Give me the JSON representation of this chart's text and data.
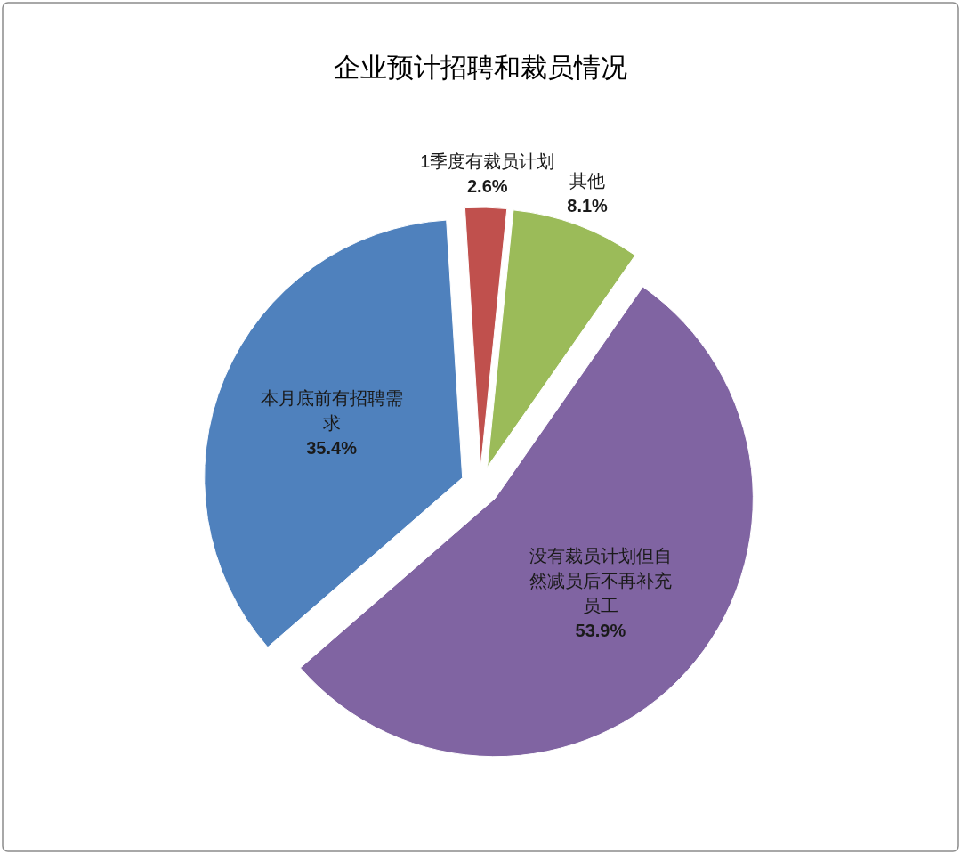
{
  "chart_data": {
    "type": "pie",
    "title": "企业预计招聘和裁员情况",
    "categories": [
      "本月底前有招聘需求",
      "1季度有裁员计划",
      "其他",
      "没有裁员计划但自然减员后不再补充员工"
    ],
    "values": [
      35.4,
      2.6,
      8.1,
      53.9
    ],
    "colors": [
      "#4f81bd",
      "#c0504d",
      "#9bbb59",
      "#8064a2"
    ],
    "value_labels": [
      "35.4%",
      "2.6%",
      "8.1%",
      "53.9%"
    ]
  }
}
